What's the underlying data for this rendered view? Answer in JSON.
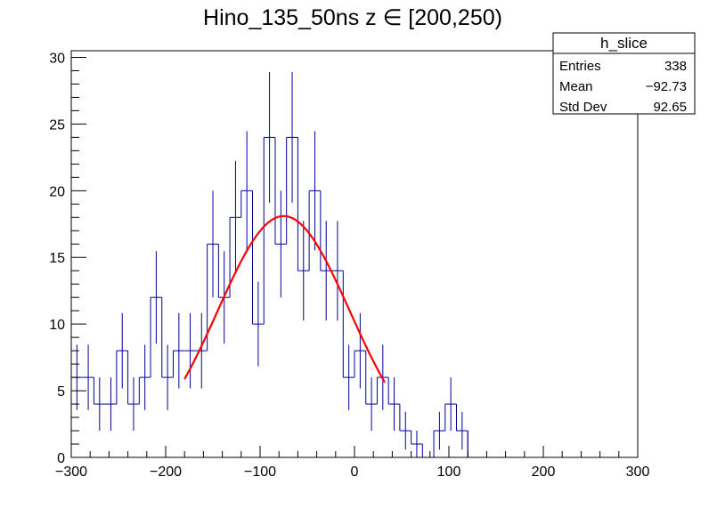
{
  "chart_data": {
    "type": "bar",
    "title": "Hino_135_50ns z  ∈ [200,250)",
    "xlabel": "",
    "ylabel": "",
    "xlim": [
      -300,
      300
    ],
    "ylim": [
      0,
      30.5
    ],
    "x_ticks": [
      -300,
      -200,
      -100,
      0,
      100,
      200,
      300
    ],
    "x_tick_labels": [
      "−300",
      "−200",
      "−100",
      "0",
      "100",
      "200",
      "300"
    ],
    "y_ticks": [
      0,
      5,
      10,
      15,
      20,
      25,
      30
    ],
    "y_tick_labels": [
      "0",
      "5",
      "10",
      "15",
      "20",
      "25",
      "30"
    ],
    "bin_width": 12,
    "bin_low_edges": [
      -300,
      -288,
      -276,
      -264,
      -252,
      -240,
      -228,
      -216,
      -204,
      -192,
      -180,
      -168,
      -156,
      -144,
      -132,
      -120,
      -108,
      -96,
      -84,
      -72,
      -60,
      -48,
      -36,
      -24,
      -12,
      0,
      12,
      24,
      36,
      48,
      60,
      72,
      84,
      96,
      108,
      120,
      132,
      144
    ],
    "bin_counts": [
      6,
      6,
      4,
      4,
      8,
      4,
      6,
      12,
      6,
      8,
      8,
      8,
      16,
      12,
      18,
      20,
      10,
      24,
      16,
      24,
      14,
      20,
      14,
      14,
      6,
      8,
      4,
      6,
      4,
      2,
      1,
      0,
      2,
      4,
      2,
      0,
      0,
      0
    ],
    "histogram_color": "#000099",
    "fit": {
      "name": "gaussian",
      "color": "#ff0000",
      "amplitude": 18.1,
      "mean": -75,
      "sigma": 70,
      "range": [
        -180,
        32
      ]
    },
    "grid": false,
    "stats_box": {
      "title": "h_slice",
      "rows": [
        {
          "label": "Entries",
          "value": "338"
        },
        {
          "label": "Mean",
          "value": "−92.73"
        },
        {
          "label": "Std Dev",
          "value": "92.65"
        }
      ]
    }
  }
}
